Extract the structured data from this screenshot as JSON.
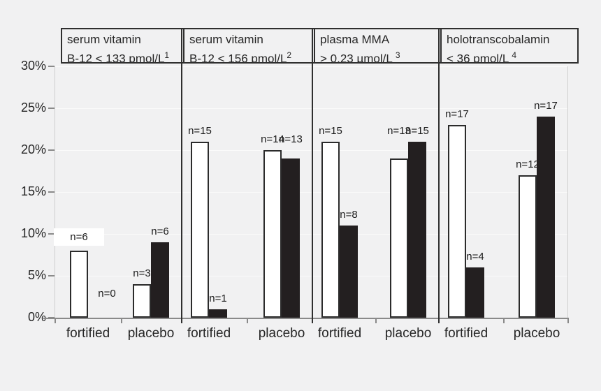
{
  "background_color": "#f1f1f2",
  "colors": {
    "bar_white_fill": "#ffffff",
    "bar_border": "#2b2b2b",
    "bar_black_fill": "#231f20",
    "axis": "#8a8a8a",
    "divider": "#2f2f2f",
    "gridline": "#fafafa",
    "text": "#262626"
  },
  "chart_data": {
    "type": "bar",
    "title": "",
    "legend": "none",
    "grid": "faint horizontal lines every 5%",
    "y_axis": {
      "min": 0,
      "max": 30,
      "step": 5,
      "unit": "%",
      "tick_labels": [
        "0%",
        "5%",
        "10%",
        "15%",
        "20%",
        "25%",
        "30%"
      ]
    },
    "series_styles": [
      {
        "series": "white",
        "fill": "#ffffff"
      },
      {
        "series": "black",
        "fill": "#231f20"
      }
    ],
    "panels": [
      {
        "header": {
          "line1": "serum vitamin",
          "line2": "B-12 < 133 pmol/L",
          "sup": "1"
        },
        "groups": [
          {
            "label": "fortified",
            "bars": [
              {
                "series": "white",
                "value": 8,
                "n_label": "n=6",
                "boxed": true
              },
              {
                "series": "black",
                "value": 0,
                "n_label": "n=0"
              }
            ]
          },
          {
            "label": "placebo",
            "bars": [
              {
                "series": "white",
                "value": 4,
                "n_label": "n=3"
              },
              {
                "series": "black",
                "value": 9,
                "n_label": "n=6"
              }
            ]
          }
        ]
      },
      {
        "header": {
          "line1": "serum vitamin",
          "line2": "B-12 < 156 pmol/L",
          "sup": "2"
        },
        "groups": [
          {
            "label": "fortified",
            "bars": [
              {
                "series": "white",
                "value": 21,
                "n_label": "n=15"
              },
              {
                "series": "black",
                "value": 1,
                "n_label": "n=1"
              }
            ]
          },
          {
            "label": "placebo",
            "bars": [
              {
                "series": "white",
                "value": 20,
                "n_label": "n=14"
              },
              {
                "series": "black",
                "value": 19,
                "n_label": "n=13"
              }
            ]
          }
        ]
      },
      {
        "header": {
          "line1": "plasma MMA",
          "line2": "> 0.23 µmol/L ",
          "sup": "3"
        },
        "groups": [
          {
            "label": "fortified",
            "bars": [
              {
                "series": "white",
                "value": 21,
                "n_label": "n=15"
              },
              {
                "series": "black",
                "value": 11,
                "n_label": "n=8"
              }
            ]
          },
          {
            "label": "placebo",
            "bars": [
              {
                "series": "white",
                "value": 19,
                "n_label": "n=13"
              },
              {
                "series": "black",
                "value": 21,
                "n_label": "n=15"
              }
            ]
          }
        ]
      },
      {
        "header": {
          "line1": "holotranscobalamin",
          "line2": "< 36 pmol/L ",
          "sup": "4"
        },
        "groups": [
          {
            "label": "fortified",
            "bars": [
              {
                "series": "white",
                "value": 23,
                "n_label": "n=17"
              },
              {
                "series": "black",
                "value": 6,
                "n_label": "n=4"
              }
            ]
          },
          {
            "label": "placebo",
            "bars": [
              {
                "series": "white",
                "value": 17,
                "n_label": "n=12"
              },
              {
                "series": "black",
                "value": 24,
                "n_label": "n=17"
              }
            ]
          }
        ]
      }
    ]
  }
}
